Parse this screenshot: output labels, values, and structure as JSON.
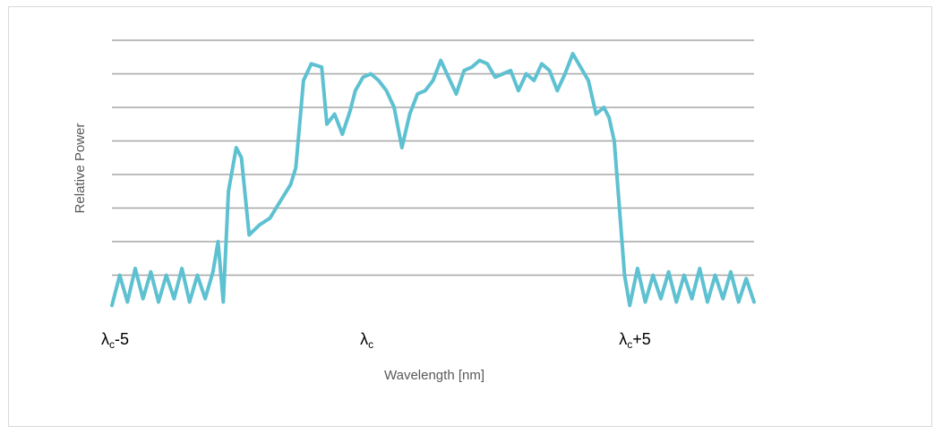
{
  "chart_data": {
    "type": "line",
    "title": "",
    "xlabel": "Wavelength [nm]",
    "ylabel": "Relative Power",
    "x_tick_labels": [
      {
        "base": "λ",
        "sub": "c",
        "suffix": "-5",
        "value": -5
      },
      {
        "base": "λ",
        "sub": "c",
        "suffix": "",
        "value": 0
      },
      {
        "base": "λ",
        "sub": "c",
        "suffix": "+5",
        "value": 5
      }
    ],
    "xlim": [
      -5,
      7.4
    ],
    "ylim": [
      0,
      8
    ],
    "y_gridlines": 8,
    "y_tick_labels": [],
    "grid": true,
    "legend": "none",
    "line_color": "#5ec1d1",
    "grid_color": "#a6a6a6",
    "series": [
      {
        "points": [
          [
            -5.0,
            0.1
          ],
          [
            -4.85,
            1.0
          ],
          [
            -4.7,
            0.2
          ],
          [
            -4.55,
            1.2
          ],
          [
            -4.4,
            0.3
          ],
          [
            -4.25,
            1.1
          ],
          [
            -4.1,
            0.2
          ],
          [
            -3.95,
            1.0
          ],
          [
            -3.8,
            0.3
          ],
          [
            -3.65,
            1.2
          ],
          [
            -3.5,
            0.2
          ],
          [
            -3.35,
            1.0
          ],
          [
            -3.2,
            0.3
          ],
          [
            -3.05,
            1.1
          ],
          [
            -2.95,
            2.0
          ],
          [
            -2.85,
            0.2
          ],
          [
            -2.75,
            3.5
          ],
          [
            -2.6,
            4.8
          ],
          [
            -2.5,
            4.5
          ],
          [
            -2.35,
            2.2
          ],
          [
            -2.15,
            2.5
          ],
          [
            -1.95,
            2.7
          ],
          [
            -1.75,
            3.2
          ],
          [
            -1.55,
            3.7
          ],
          [
            -1.45,
            4.2
          ],
          [
            -1.3,
            6.8
          ],
          [
            -1.15,
            7.3
          ],
          [
            -0.95,
            7.2
          ],
          [
            -0.85,
            5.5
          ],
          [
            -0.7,
            5.8
          ],
          [
            -0.55,
            5.2
          ],
          [
            -0.4,
            5.9
          ],
          [
            -0.3,
            6.5
          ],
          [
            -0.15,
            6.9
          ],
          [
            0.0,
            7.0
          ],
          [
            0.15,
            6.8
          ],
          [
            0.3,
            6.5
          ],
          [
            0.45,
            6.0
          ],
          [
            0.6,
            4.8
          ],
          [
            0.75,
            5.8
          ],
          [
            0.9,
            6.4
          ],
          [
            1.05,
            6.5
          ],
          [
            1.2,
            6.8
          ],
          [
            1.35,
            7.4
          ],
          [
            1.5,
            6.9
          ],
          [
            1.65,
            6.4
          ],
          [
            1.8,
            7.1
          ],
          [
            1.95,
            7.2
          ],
          [
            2.1,
            7.4
          ],
          [
            2.25,
            7.3
          ],
          [
            2.4,
            6.9
          ],
          [
            2.55,
            7.0
          ],
          [
            2.7,
            7.1
          ],
          [
            2.85,
            6.5
          ],
          [
            3.0,
            7.0
          ],
          [
            3.15,
            6.8
          ],
          [
            3.3,
            7.3
          ],
          [
            3.45,
            7.1
          ],
          [
            3.6,
            6.5
          ],
          [
            3.75,
            7.0
          ],
          [
            3.9,
            7.6
          ],
          [
            4.05,
            7.2
          ],
          [
            4.2,
            6.8
          ],
          [
            4.35,
            5.8
          ],
          [
            4.5,
            6.0
          ],
          [
            4.6,
            5.7
          ],
          [
            4.7,
            5.0
          ],
          [
            4.8,
            3.0
          ],
          [
            4.9,
            1.0
          ],
          [
            5.0,
            0.1
          ],
          [
            5.15,
            1.2
          ],
          [
            5.3,
            0.2
          ],
          [
            5.45,
            1.0
          ],
          [
            5.6,
            0.3
          ],
          [
            5.75,
            1.1
          ],
          [
            5.9,
            0.2
          ],
          [
            6.05,
            1.0
          ],
          [
            6.2,
            0.3
          ],
          [
            6.35,
            1.2
          ],
          [
            6.5,
            0.2
          ],
          [
            6.65,
            1.0
          ],
          [
            6.8,
            0.3
          ],
          [
            6.95,
            1.1
          ],
          [
            7.1,
            0.2
          ],
          [
            7.25,
            0.9
          ],
          [
            7.4,
            0.2
          ]
        ]
      }
    ]
  }
}
